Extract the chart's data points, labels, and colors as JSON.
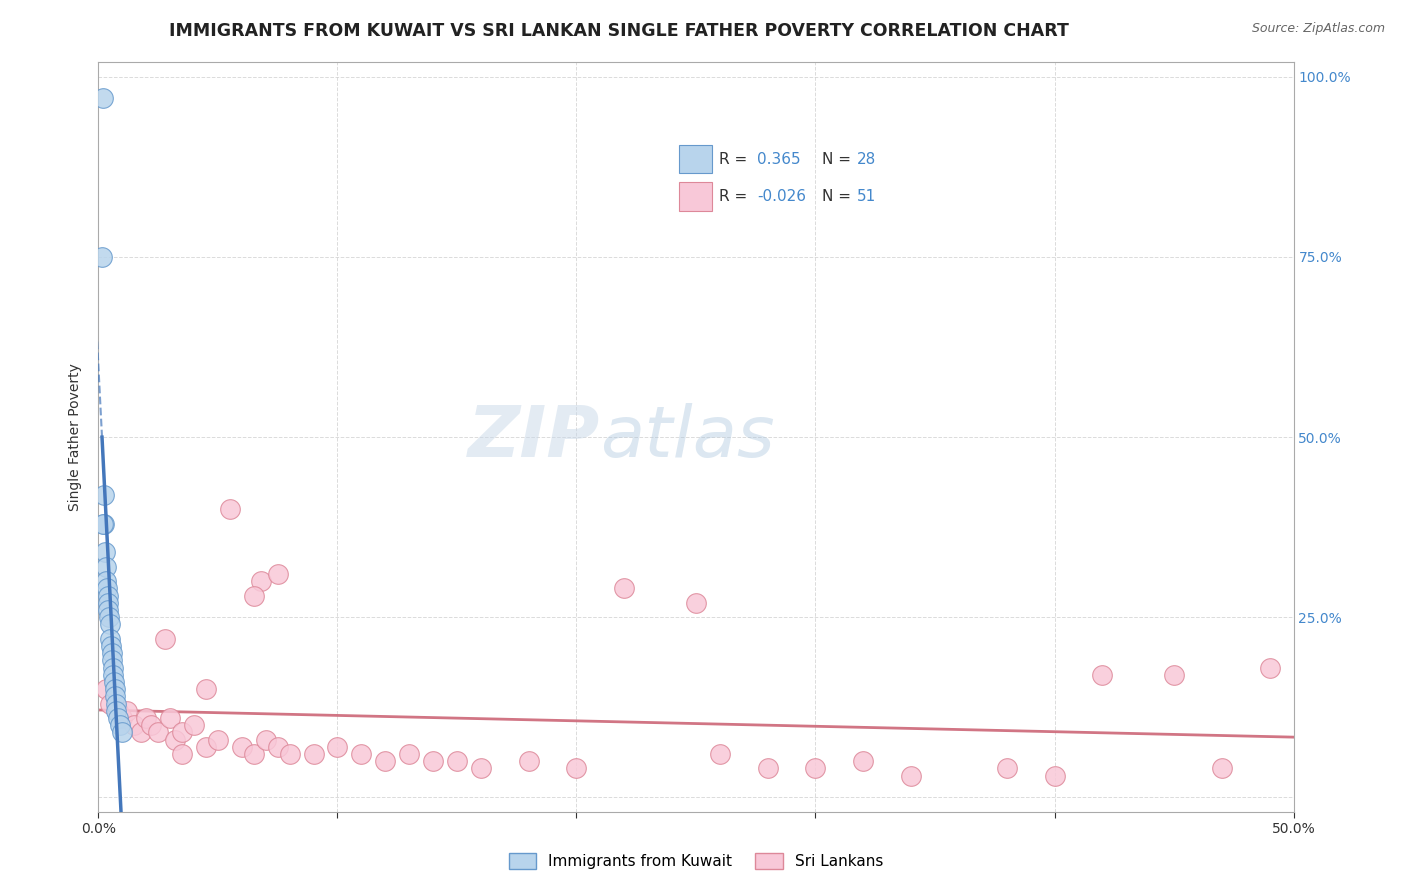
{
  "title": "IMMIGRANTS FROM KUWAIT VS SRI LANKAN SINGLE FATHER POVERTY CORRELATION CHART",
  "source": "Source: ZipAtlas.com",
  "ylabel": "Single Father Poverty",
  "xlim": [
    0.0,
    0.5
  ],
  "ylim": [
    -0.02,
    1.02
  ],
  "xtick_pos": [
    0.0,
    0.1,
    0.2,
    0.3,
    0.4,
    0.5
  ],
  "xtick_labels": [
    "0.0%",
    "",
    "",
    "",
    "",
    "50.0%"
  ],
  "ytick_positions_right": [
    1.0,
    0.75,
    0.5,
    0.25
  ],
  "ytick_labels_right": [
    "100.0%",
    "75.0%",
    "50.0%",
    "25.0%"
  ],
  "legend_kuwait_r": "0.365",
  "legend_kuwait_n": "28",
  "legend_srilanka_r": "-0.026",
  "legend_srilanka_n": "51",
  "blue_fill": "#b8d4ec",
  "blue_edge": "#6699cc",
  "blue_line": "#4477bb",
  "pink_fill": "#f8c8d8",
  "pink_edge": "#dd8899",
  "pink_line": "#cc6677",
  "background_color": "#ffffff",
  "grid_color": "#cccccc",
  "title_color": "#222222",
  "right_tick_color": "#4488cc",
  "kuwait_x": [
    0.0018,
    0.0022,
    0.0025,
    0.0028,
    0.003,
    0.0032,
    0.0035,
    0.0038,
    0.004,
    0.0042,
    0.0045,
    0.0048,
    0.005,
    0.0052,
    0.0055,
    0.0058,
    0.006,
    0.0062,
    0.0065,
    0.0068,
    0.007,
    0.0072,
    0.0075,
    0.008,
    0.009,
    0.01,
    0.0015,
    0.002
  ],
  "kuwait_y": [
    0.97,
    0.42,
    0.38,
    0.34,
    0.32,
    0.3,
    0.29,
    0.28,
    0.27,
    0.26,
    0.25,
    0.24,
    0.22,
    0.21,
    0.2,
    0.19,
    0.18,
    0.17,
    0.16,
    0.15,
    0.14,
    0.13,
    0.12,
    0.11,
    0.1,
    0.09,
    0.75,
    0.38
  ],
  "srilanka_x": [
    0.003,
    0.005,
    0.008,
    0.01,
    0.012,
    0.015,
    0.018,
    0.02,
    0.022,
    0.025,
    0.028,
    0.03,
    0.032,
    0.035,
    0.04,
    0.045,
    0.05,
    0.055,
    0.06,
    0.065,
    0.07,
    0.075,
    0.08,
    0.09,
    0.1,
    0.11,
    0.12,
    0.13,
    0.14,
    0.15,
    0.16,
    0.18,
    0.2,
    0.22,
    0.25,
    0.26,
    0.28,
    0.3,
    0.32,
    0.34,
    0.38,
    0.4,
    0.42,
    0.45,
    0.47,
    0.49,
    0.068,
    0.075,
    0.065,
    0.045,
    0.035
  ],
  "srilanka_y": [
    0.15,
    0.13,
    0.12,
    0.11,
    0.12,
    0.1,
    0.09,
    0.11,
    0.1,
    0.09,
    0.22,
    0.11,
    0.08,
    0.09,
    0.1,
    0.07,
    0.08,
    0.4,
    0.07,
    0.06,
    0.08,
    0.07,
    0.06,
    0.06,
    0.07,
    0.06,
    0.05,
    0.06,
    0.05,
    0.05,
    0.04,
    0.05,
    0.04,
    0.29,
    0.27,
    0.06,
    0.04,
    0.04,
    0.05,
    0.03,
    0.04,
    0.03,
    0.17,
    0.17,
    0.04,
    0.18,
    0.3,
    0.31,
    0.28,
    0.15,
    0.06
  ],
  "title_fontsize": 12.5,
  "axis_label_fontsize": 10,
  "tick_fontsize": 10,
  "legend_fontsize": 11
}
